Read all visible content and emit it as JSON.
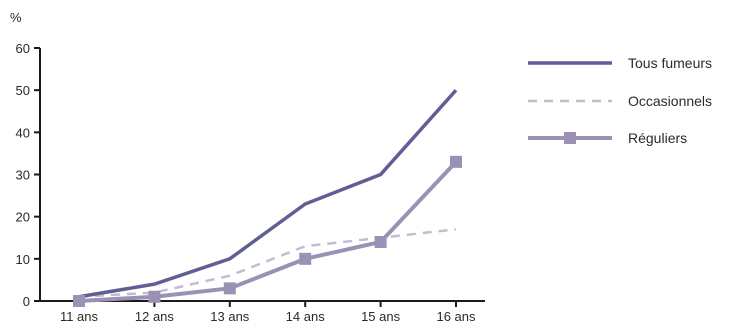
{
  "chart_data": {
    "type": "line",
    "title": "",
    "xlabel": "",
    "ylabel": "%",
    "categories": [
      "11 ans",
      "12 ans",
      "13 ans",
      "14 ans",
      "15 ans",
      "16 ans"
    ],
    "ylim": [
      0,
      60
    ],
    "yticks": [
      0,
      10,
      20,
      30,
      40,
      50,
      60
    ],
    "grid": false,
    "legend_position": "right",
    "series": [
      {
        "name": "Tous fumeurs",
        "values": [
          1,
          4,
          10,
          23,
          30,
          50
        ],
        "color": "#5f5f95",
        "style": "solid"
      },
      {
        "name": "Occasionnels",
        "values": [
          1,
          2,
          6,
          13,
          15,
          17
        ],
        "color": "#c4bcd4",
        "style": "dashed"
      },
      {
        "name": "Réguliers",
        "values": [
          0,
          1,
          3,
          10,
          14,
          33
        ],
        "color": "#9a91b5",
        "style": "square-markers"
      }
    ]
  }
}
